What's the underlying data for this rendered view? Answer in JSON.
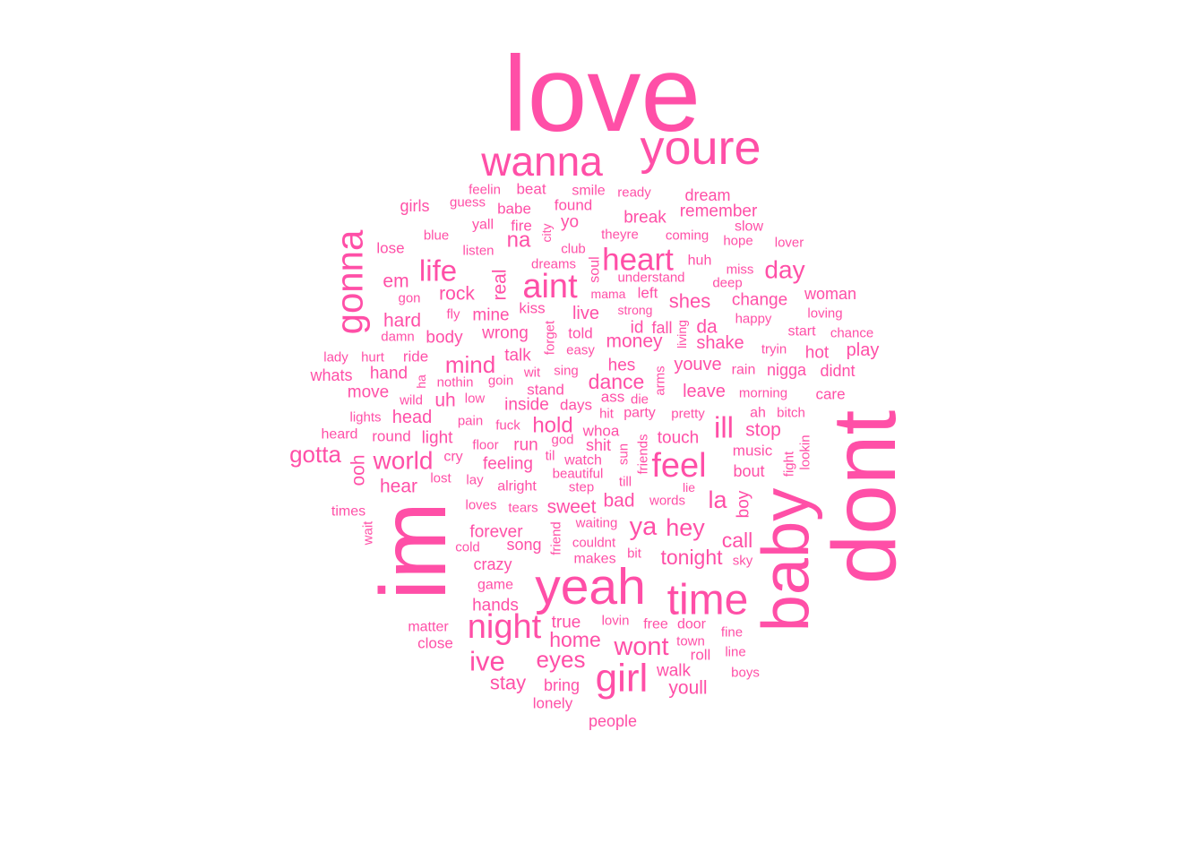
{
  "chart_data": {
    "type": "wordcloud",
    "color": "#ff4fa7",
    "words": [
      {
        "text": "love",
        "weight": 10.0
      },
      {
        "text": "im",
        "weight": 8.8
      },
      {
        "text": "dont",
        "weight": 8.5
      },
      {
        "text": "baby",
        "weight": 6.4
      },
      {
        "text": "yeah",
        "weight": 4.9
      },
      {
        "text": "youre",
        "weight": 4.7
      },
      {
        "text": "time",
        "weight": 4.2
      },
      {
        "text": "wanna",
        "weight": 4.0
      },
      {
        "text": "gonna",
        "weight": 3.8
      },
      {
        "text": "girl",
        "weight": 3.8
      },
      {
        "text": "aint",
        "weight": 3.4
      },
      {
        "text": "night",
        "weight": 3.4
      },
      {
        "text": "feel",
        "weight": 3.4
      },
      {
        "text": "heart",
        "weight": 3.1
      },
      {
        "text": "life",
        "weight": 2.9
      },
      {
        "text": "ive",
        "weight": 2.7
      },
      {
        "text": "ill",
        "weight": 2.6
      },
      {
        "text": "wont",
        "weight": 2.5
      },
      {
        "text": "day",
        "weight": 2.4
      },
      {
        "text": "world",
        "weight": 2.4
      },
      {
        "text": "eyes",
        "weight": 2.2
      },
      {
        "text": "gotta",
        "weight": 2.2
      },
      {
        "text": "mind",
        "weight": 2.2
      },
      {
        "text": "ya",
        "weight": 2.2
      },
      {
        "text": "hey",
        "weight": 2.2
      },
      {
        "text": "home",
        "weight": 2.0
      },
      {
        "text": "na",
        "weight": 2.0
      },
      {
        "text": "la",
        "weight": 2.0
      },
      {
        "text": "hold",
        "weight": 2.0
      },
      {
        "text": "stay",
        "weight": 2.0
      },
      {
        "text": "dance",
        "weight": 2.0
      },
      {
        "text": "tonight",
        "weight": 2.0
      },
      {
        "text": "call",
        "weight": 2.0
      },
      {
        "text": "sweet",
        "weight": 1.8
      },
      {
        "text": "rock",
        "weight": 1.8
      },
      {
        "text": "money",
        "weight": 1.8
      },
      {
        "text": "hard",
        "weight": 1.8
      },
      {
        "text": "shes",
        "weight": 1.8
      },
      {
        "text": "em",
        "weight": 1.8
      },
      {
        "text": "ooh",
        "weight": 1.8
      },
      {
        "text": "hear",
        "weight": 1.8
      },
      {
        "text": "bad",
        "weight": 1.8
      },
      {
        "text": "head",
        "weight": 1.7
      },
      {
        "text": "stop",
        "weight": 1.7
      },
      {
        "text": "youve",
        "weight": 1.7
      },
      {
        "text": "leave",
        "weight": 1.7
      },
      {
        "text": "shake",
        "weight": 1.7
      },
      {
        "text": "walk",
        "weight": 1.7
      },
      {
        "text": "youll",
        "weight": 1.7
      },
      {
        "text": "real",
        "weight": 1.7
      },
      {
        "text": "change",
        "weight": 1.7
      },
      {
        "text": "live",
        "weight": 1.7
      },
      {
        "text": "mine",
        "weight": 1.7
      },
      {
        "text": "wrong",
        "weight": 1.7
      },
      {
        "text": "talk",
        "weight": 1.7
      },
      {
        "text": "feeling",
        "weight": 1.7
      },
      {
        "text": "hands",
        "weight": 1.7
      },
      {
        "text": "true",
        "weight": 1.7
      },
      {
        "text": "id",
        "weight": 1.7
      },
      {
        "text": "da",
        "weight": 1.7
      },
      {
        "text": "touch",
        "weight": 1.6
      },
      {
        "text": "light",
        "weight": 1.6
      },
      {
        "text": "run",
        "weight": 1.6
      },
      {
        "text": "move",
        "weight": 1.6
      },
      {
        "text": "uh",
        "weight": 1.6
      },
      {
        "text": "inside",
        "weight": 1.6
      },
      {
        "text": "forever",
        "weight": 1.6
      },
      {
        "text": "song",
        "weight": 1.6
      },
      {
        "text": "crazy",
        "weight": 1.6
      },
      {
        "text": "bring",
        "weight": 1.6
      },
      {
        "text": "body",
        "weight": 1.6
      },
      {
        "text": "hes",
        "weight": 1.6
      },
      {
        "text": "woman",
        "weight": 1.6
      },
      {
        "text": "play",
        "weight": 1.6
      },
      {
        "text": "hot",
        "weight": 1.6
      },
      {
        "text": "boy",
        "weight": 1.6
      },
      {
        "text": "remember",
        "weight": 1.6
      },
      {
        "text": "break",
        "weight": 1.6
      },
      {
        "text": "wanna",
        "weight": 0,
        "skip": true
      },
      {
        "text": "music",
        "weight": 1.5
      },
      {
        "text": "bout",
        "weight": 1.5
      },
      {
        "text": "nigga",
        "weight": 1.5
      },
      {
        "text": "didnt",
        "weight": 1.5
      },
      {
        "text": "dream",
        "weight": 1.5
      },
      {
        "text": "girls",
        "weight": 1.5
      },
      {
        "text": "found",
        "weight": 1.5
      },
      {
        "text": "yo",
        "weight": 1.5
      },
      {
        "text": "fall",
        "weight": 1.5
      },
      {
        "text": "left",
        "weight": 1.5
      },
      {
        "text": "ride",
        "weight": 1.5
      },
      {
        "text": "hand",
        "weight": 1.5
      },
      {
        "text": "whats",
        "weight": 1.5
      },
      {
        "text": "lose",
        "weight": 1.5
      },
      {
        "text": "stand",
        "weight": 1.5
      },
      {
        "text": "people",
        "weight": 1.5
      },
      {
        "text": "lonely",
        "weight": 1.5
      },
      {
        "text": "close",
        "weight": 1.5
      },
      {
        "text": "matter",
        "weight": 1.5
      },
      {
        "text": "round",
        "weight": 1.5
      },
      {
        "text": "care",
        "weight": 1.5
      },
      {
        "text": "beat",
        "weight": 1.5
      },
      {
        "text": "kiss",
        "weight": 1.5
      },
      {
        "text": "told",
        "weight": 1.5
      },
      {
        "text": "roll",
        "weight": 1.5
      },
      {
        "text": "fire",
        "weight": 1.5
      },
      {
        "text": "game",
        "weight": 1.4
      },
      {
        "text": "watch",
        "weight": 1.4
      },
      {
        "text": "shit",
        "weight": 1.4
      },
      {
        "text": "whoa",
        "weight": 1.4
      },
      {
        "text": "days",
        "weight": 1.4
      },
      {
        "text": "ass",
        "weight": 1.4
      },
      {
        "text": "party",
        "weight": 1.4
      },
      {
        "text": "slow",
        "weight": 1.4
      },
      {
        "text": "babe",
        "weight": 1.4
      },
      {
        "text": "yall",
        "weight": 1.4
      },
      {
        "text": "feelin",
        "weight": 1.4
      },
      {
        "text": "guess",
        "weight": 1.4
      },
      {
        "text": "smile",
        "weight": 1.4
      },
      {
        "text": "ready",
        "weight": 1.4
      },
      {
        "text": "coming",
        "weight": 1.4
      },
      {
        "text": "theyre",
        "weight": 1.4
      },
      {
        "text": "club",
        "weight": 1.4
      },
      {
        "text": "dreams",
        "weight": 1.4
      },
      {
        "text": "understand",
        "weight": 1.4
      },
      {
        "text": "mama",
        "weight": 1.4
      },
      {
        "text": "strong",
        "weight": 1.4
      },
      {
        "text": "deep",
        "weight": 1.4
      },
      {
        "text": "miss",
        "weight": 1.4
      },
      {
        "text": "huh",
        "weight": 1.4
      },
      {
        "text": "hope",
        "weight": 1.4
      },
      {
        "text": "lover",
        "weight": 1.4
      },
      {
        "text": "happy",
        "weight": 1.4
      },
      {
        "text": "loving",
        "weight": 1.4
      },
      {
        "text": "start",
        "weight": 1.4
      },
      {
        "text": "chance",
        "weight": 1.4
      },
      {
        "text": "tryin",
        "weight": 1.4
      },
      {
        "text": "rain",
        "weight": 1.4
      },
      {
        "text": "morning",
        "weight": 1.4
      },
      {
        "text": "ah",
        "weight": 1.4
      },
      {
        "text": "bitch",
        "weight": 1.4
      },
      {
        "text": "pretty",
        "weight": 1.4
      },
      {
        "text": "hit",
        "weight": 1.4
      },
      {
        "text": "die",
        "weight": 1.4
      },
      {
        "text": "easy",
        "weight": 1.4
      },
      {
        "text": "goin",
        "weight": 1.4
      },
      {
        "text": "sing",
        "weight": 1.4
      },
      {
        "text": "wit",
        "weight": 1.4
      },
      {
        "text": "low",
        "weight": 1.4
      },
      {
        "text": "nothin",
        "weight": 1.4
      },
      {
        "text": "wild",
        "weight": 1.4
      },
      {
        "text": "lights",
        "weight": 1.4
      },
      {
        "text": "heard",
        "weight": 1.4
      },
      {
        "text": "pain",
        "weight": 1.4
      },
      {
        "text": "fuck",
        "weight": 1.4
      },
      {
        "text": "floor",
        "weight": 1.4
      },
      {
        "text": "cry",
        "weight": 1.4
      },
      {
        "text": "god",
        "weight": 1.4
      },
      {
        "text": "til",
        "weight": 1.4
      },
      {
        "text": "beautiful",
        "weight": 1.4
      },
      {
        "text": "lost",
        "weight": 1.4
      },
      {
        "text": "lay",
        "weight": 1.4
      },
      {
        "text": "alright",
        "weight": 1.4
      },
      {
        "text": "step",
        "weight": 1.4
      },
      {
        "text": "till",
        "weight": 1.4
      },
      {
        "text": "words",
        "weight": 1.4
      },
      {
        "text": "lie",
        "weight": 1.4
      },
      {
        "text": "times",
        "weight": 1.4
      },
      {
        "text": "loves",
        "weight": 1.4
      },
      {
        "text": "tears",
        "weight": 1.4
      },
      {
        "text": "waiting",
        "weight": 1.4
      },
      {
        "text": "couldnt",
        "weight": 1.4
      },
      {
        "text": "makes",
        "weight": 1.4
      },
      {
        "text": "bit",
        "weight": 1.4
      },
      {
        "text": "sky",
        "weight": 1.4
      },
      {
        "text": "cold",
        "weight": 1.4
      },
      {
        "text": "lovin",
        "weight": 1.4
      },
      {
        "text": "free",
        "weight": 1.4
      },
      {
        "text": "door",
        "weight": 1.4
      },
      {
        "text": "town",
        "weight": 1.4
      },
      {
        "text": "fine",
        "weight": 1.4
      },
      {
        "text": "line",
        "weight": 1.4
      },
      {
        "text": "boys",
        "weight": 1.4
      },
      {
        "text": "blue",
        "weight": 1.4
      },
      {
        "text": "listen",
        "weight": 1.4
      },
      {
        "text": "gon",
        "weight": 1.4
      },
      {
        "text": "fly",
        "weight": 1.4
      },
      {
        "text": "damn",
        "weight": 1.4
      },
      {
        "text": "lady",
        "weight": 1.4
      },
      {
        "text": "hurt",
        "weight": 1.4
      },
      {
        "text": "city",
        "weight": 1.3
      },
      {
        "text": "soul",
        "weight": 1.3
      },
      {
        "text": "forget",
        "weight": 1.3
      },
      {
        "text": "living",
        "weight": 1.3
      },
      {
        "text": "arms",
        "weight": 1.3
      },
      {
        "text": "sun",
        "weight": 1.3
      },
      {
        "text": "friends",
        "weight": 1.3
      },
      {
        "text": "fight",
        "weight": 1.3
      },
      {
        "text": "lookin",
        "weight": 1.3
      },
      {
        "text": "wait",
        "weight": 1.3
      },
      {
        "text": "friend",
        "weight": 1.3
      },
      {
        "text": "ha",
        "weight": 1.3
      }
    ]
  }
}
